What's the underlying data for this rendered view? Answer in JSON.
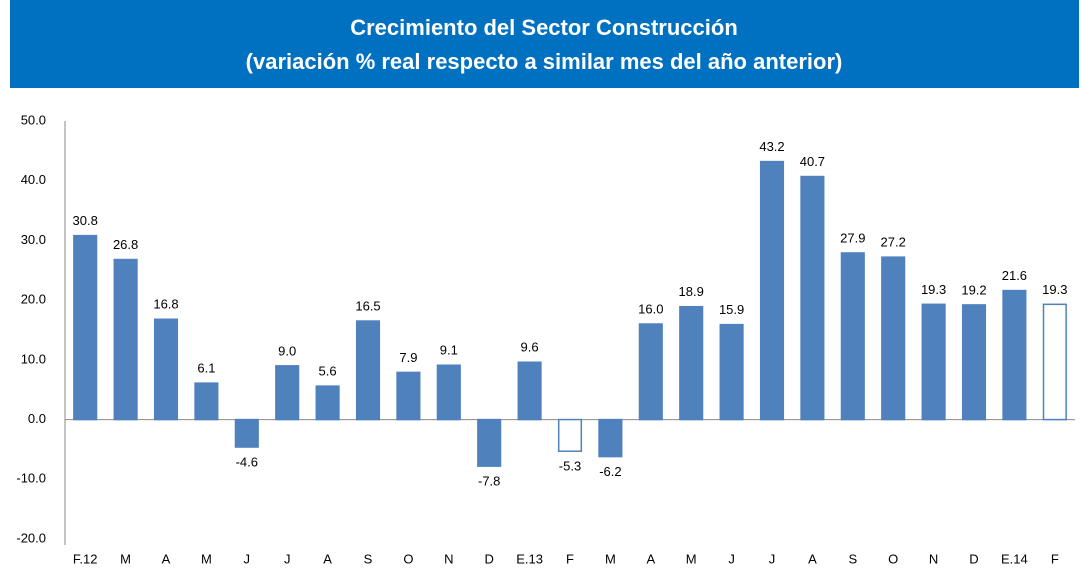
{
  "chart_data": {
    "type": "bar",
    "title": "Crecimiento del Sector Construcción",
    "subtitle": "(variación % real respecto a similar mes del año anterior)",
    "categories": [
      "F.12",
      "M",
      "A",
      "M",
      "J",
      "J",
      "A",
      "S",
      "O",
      "N",
      "D",
      "E.13",
      "F",
      "M",
      "A",
      "M",
      "J",
      "J",
      "A",
      "S",
      "O",
      "N",
      "D",
      "E.14",
      "F"
    ],
    "values": [
      30.8,
      26.8,
      16.8,
      6.1,
      -4.6,
      9.0,
      5.6,
      16.5,
      7.9,
      9.1,
      -7.8,
      9.6,
      -5.3,
      -6.2,
      16.0,
      18.9,
      15.9,
      43.2,
      40.7,
      27.9,
      27.2,
      19.3,
      19.2,
      21.6,
      19.3
    ],
    "value_labels": [
      "30.8",
      "26.8",
      "16.8",
      "6.1",
      "-4.6",
      "9.0",
      "5.6",
      "16.5",
      "7.9",
      "9.1",
      "-7.8",
      "9.6",
      "-5.3",
      "-6.2",
      "16.0",
      "18.9",
      "15.9",
      "43.2",
      "40.7",
      "27.9",
      "27.2",
      "19.3",
      "19.2",
      "21.6",
      "19.3"
    ],
    "colors": [
      "#4f81bd",
      "#4f81bd",
      "#4f81bd",
      "#4f81bd",
      "#4f81bd",
      "#4f81bd",
      "#4f81bd",
      "#4f81bd",
      "#4f81bd",
      "#4f81bd",
      "#4f81bd",
      "#4f81bd",
      "#ffffff",
      "#4f81bd",
      "#4f81bd",
      "#4f81bd",
      "#4f81bd",
      "#4f81bd",
      "#4f81bd",
      "#4f81bd",
      "#4f81bd",
      "#4f81bd",
      "#4f81bd",
      "#4f81bd",
      "#ffffff"
    ],
    "edge_color": "#4f81bd",
    "ylim": [
      -20,
      50
    ],
    "yticks": [
      {
        "value": -20,
        "label": "-20.0"
      },
      {
        "value": -10,
        "label": "-10.0"
      },
      {
        "value": 0,
        "label": "0.0"
      },
      {
        "value": 10,
        "label": "10.0"
      },
      {
        "value": 20,
        "label": "20.0"
      },
      {
        "value": 30,
        "label": "30.0"
      },
      {
        "value": 40,
        "label": "40.0"
      },
      {
        "value": 50,
        "label": "50.0"
      }
    ],
    "grid": false
  }
}
